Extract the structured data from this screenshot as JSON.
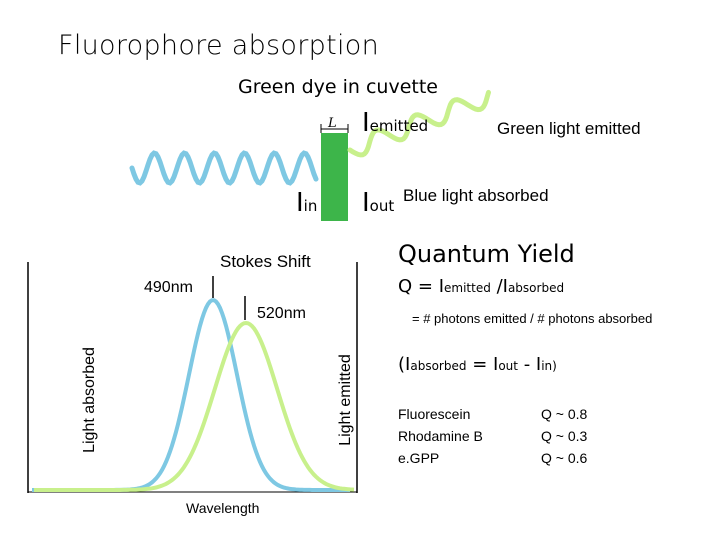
{
  "title": "Fluorophore absorption",
  "subtitle": "Green dye in cuvette",
  "cuvette": {
    "path_length_label": "L",
    "i_emitted_main": "I",
    "i_emitted_sub": "emitted",
    "i_in_main": "I",
    "i_in_sub": "in",
    "i_out_main": "I",
    "i_out_sub": "out",
    "green_light_label": "Green light emitted",
    "blue_light_label": "Blue light absorbed",
    "colors": {
      "cuvette": "#3db54a",
      "blue_wave": "#7ec8e3",
      "green_wave": "#c8f08c"
    }
  },
  "spectrum": {
    "stokes_label": "Stokes Shift",
    "absorption_peak_label": "490nm",
    "emission_peak_label": "520nm",
    "y_left_label": "Light absorbed",
    "y_right_label": "Light emitted",
    "x_label": "Wavelength",
    "colors": {
      "absorption": "#7ec8e3",
      "emission": "#c8f08c"
    }
  },
  "quantum_yield": {
    "title": "Quantum Yield",
    "eq_q": "Q = I",
    "eq_emitted_sub": "emitted",
    "eq_slash": " /I",
    "eq_absorbed_sub": "absorbed",
    "definition": "= # photons emitted / # photons absorbed",
    "rel_open": "(I",
    "rel_absorbed_sub": "absorbed",
    "rel_eq": " = I",
    "rel_out_sub": "out",
    "rel_minus": " - I",
    "rel_in_sub": "in)",
    "fluorophores": [
      {
        "name": "Fluorescein",
        "q": "Q ~ 0.8"
      },
      {
        "name": "Rhodamine B",
        "q": "Q ~ 0.3"
      },
      {
        "name": "e.GPP",
        "q": "Q ~ 0.6"
      }
    ]
  }
}
